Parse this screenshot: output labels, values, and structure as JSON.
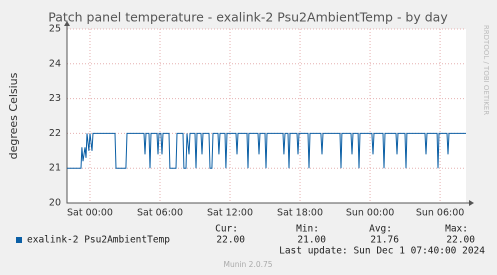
{
  "chart_data": {
    "type": "line",
    "title": "Patch panel temperature - exalink-2 Psu2AmbientTemp - by day",
    "y_label": "degrees Celsius",
    "side_label": "RRDTOOL / TOBI OETIKER",
    "footer": "Munin 2.0.75",
    "last_update": "Last update: Sun Dec  1 07:40:00 2024",
    "xlim": [
      -1.97,
      32.22
    ],
    "xticks": [
      {
        "value": 0,
        "label": "Sat 00:00"
      },
      {
        "value": 6,
        "label": "Sat 06:00"
      },
      {
        "value": 12,
        "label": "Sat 12:00"
      },
      {
        "value": 18,
        "label": "Sat 18:00"
      },
      {
        "value": 24,
        "label": "Sun 00:00"
      },
      {
        "value": 30,
        "label": "Sun 06:00"
      }
    ],
    "ylim": [
      20,
      25
    ],
    "yticks": [
      20,
      21,
      22,
      23,
      24,
      25
    ],
    "grid": true,
    "x": [
      -1.97,
      -0.77,
      -0.69,
      -0.6,
      -0.43,
      -0.34,
      -0.26,
      -0.09,
      0,
      0.17,
      0.26,
      2.14,
      2.23,
      3.08,
      3.17,
      4.63,
      4.71,
      4.8,
      5.06,
      5.14,
      5.23,
      5.74,
      5.83,
      5.91,
      6.08,
      6.17,
      6.26,
      6.77,
      6.85,
      7.37,
      7.46,
      7.97,
      8.05,
      8.23,
      8.31,
      8.48,
      8.57,
      9.0,
      9.08,
      9.17,
      9.51,
      9.6,
      9.68,
      10.2,
      10.28,
      10.45,
      10.54,
      10.97,
      11.05,
      11.14,
      11.57,
      11.65,
      11.74,
      12.51,
      12.6,
      12.68,
      13.45,
      13.54,
      13.62,
      14.4,
      14.48,
      14.57,
      15.0,
      15.08,
      15.17,
      16.54,
      16.62,
      16.71,
      16.97,
      17.05,
      17.14,
      17.74,
      17.82,
      17.91,
      18.68,
      18.77,
      18.85,
      19.79,
      19.88,
      19.97,
      21.42,
      21.51,
      21.59,
      22.37,
      22.45,
      22.54,
      22.97,
      23.05,
      23.14,
      24.16,
      24.25,
      24.34,
      25.11,
      25.19,
      25.28,
      26.22,
      26.31,
      26.39,
      26.99,
      27.08,
      27.16,
      28.71,
      28.79,
      28.88,
      29.74,
      29.82,
      29.91,
      30.59,
      30.68,
      30.76,
      32.22
    ],
    "series": [
      {
        "name": "exalink-2 Psu2AmbientTemp",
        "color": "#0b5fa5",
        "values": [
          21,
          21,
          21.6,
          21.2,
          21.6,
          21.3,
          22,
          21.5,
          22,
          21.5,
          22,
          22,
          21,
          21,
          22,
          22,
          21.4,
          22,
          22,
          21,
          22,
          22,
          21.4,
          22,
          22,
          21.4,
          22,
          22,
          21,
          21,
          22,
          22,
          21,
          21,
          22,
          21.4,
          22,
          22,
          21,
          22,
          22,
          21.4,
          22,
          22,
          21,
          21,
          22,
          22,
          21.4,
          22,
          22,
          21,
          22,
          22,
          21.4,
          22,
          22,
          21,
          22,
          22,
          21.4,
          22,
          22,
          21,
          22,
          22,
          21.4,
          22,
          22,
          21,
          22,
          22,
          21.4,
          22,
          22,
          21,
          22,
          22,
          21.4,
          22,
          22,
          21,
          22,
          22,
          21.4,
          22,
          22,
          21,
          22,
          22,
          21.4,
          22,
          22,
          21,
          22,
          22,
          21.4,
          22,
          22,
          21,
          22,
          22,
          21.4,
          22,
          22,
          21,
          22,
          22,
          21.4,
          22,
          22
        ]
      }
    ],
    "stats": [
      {
        "label": "Cur:",
        "value": 22,
        "value_label": "22.00"
      },
      {
        "label": "Min:",
        "value": 21,
        "value_label": "21.00"
      },
      {
        "label": "Avg:",
        "value": 21.76,
        "value_label": "21.76"
      },
      {
        "label": "Max:",
        "value": 22,
        "value_label": "22.00"
      }
    ]
  }
}
